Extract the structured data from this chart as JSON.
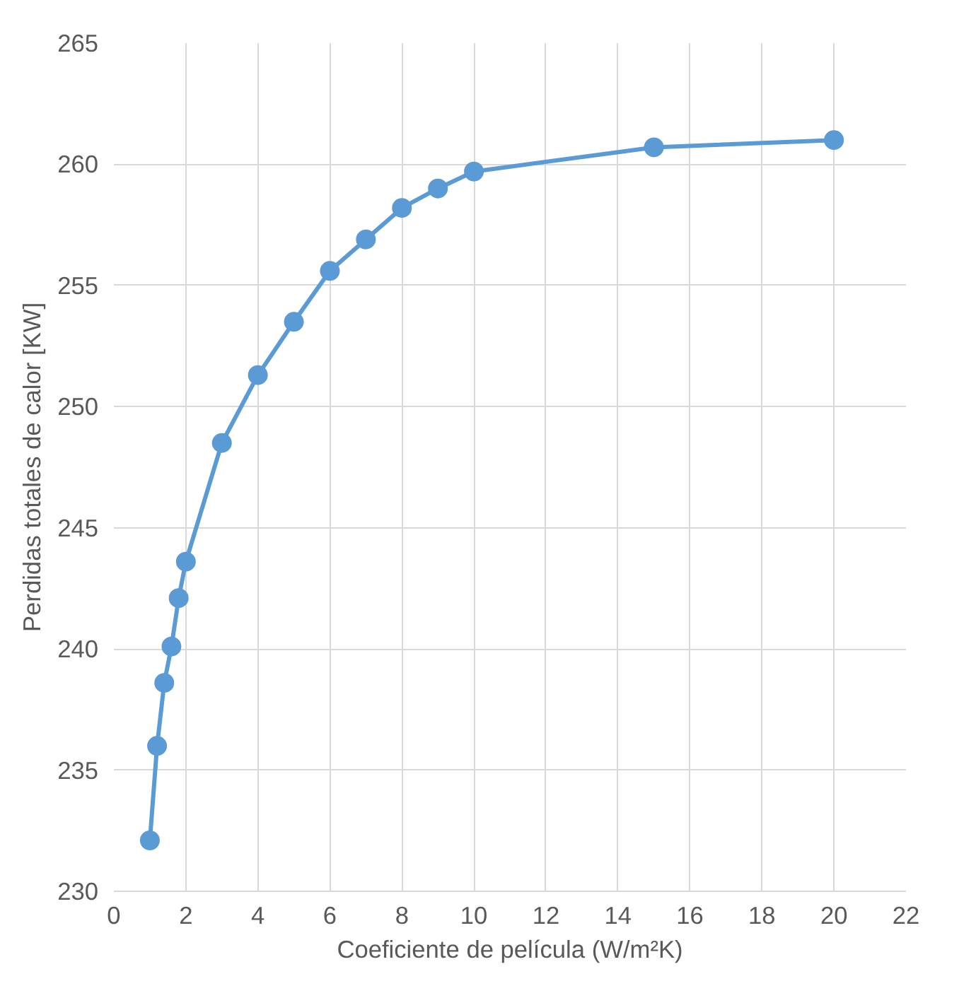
{
  "chart_data": {
    "type": "line",
    "xlabel": "Coeficiente de película (W/m²K)",
    "ylabel": "Perdidas totales de calor [KW]",
    "x": [
      1,
      1.2,
      1.4,
      1.6,
      1.8,
      2,
      3,
      4,
      5,
      6,
      7,
      8,
      9,
      10,
      15,
      20
    ],
    "series": [
      {
        "color": "#5b9bd5",
        "values": [
          232.1,
          236.0,
          238.6,
          240.1,
          242.1,
          243.6,
          248.5,
          251.3,
          253.5,
          255.6,
          256.9,
          258.2,
          259.0,
          259.7,
          260.7,
          261.0
        ]
      }
    ],
    "xlim": [
      0,
      22
    ],
    "xticks": [
      0,
      2,
      4,
      6,
      8,
      10,
      12,
      14,
      16,
      18,
      20,
      22
    ],
    "ylim": [
      230,
      265
    ],
    "yticks": [
      230,
      235,
      240,
      245,
      250,
      255,
      260,
      265
    ],
    "grid": true,
    "marker": "circle",
    "line_style": "solid"
  }
}
